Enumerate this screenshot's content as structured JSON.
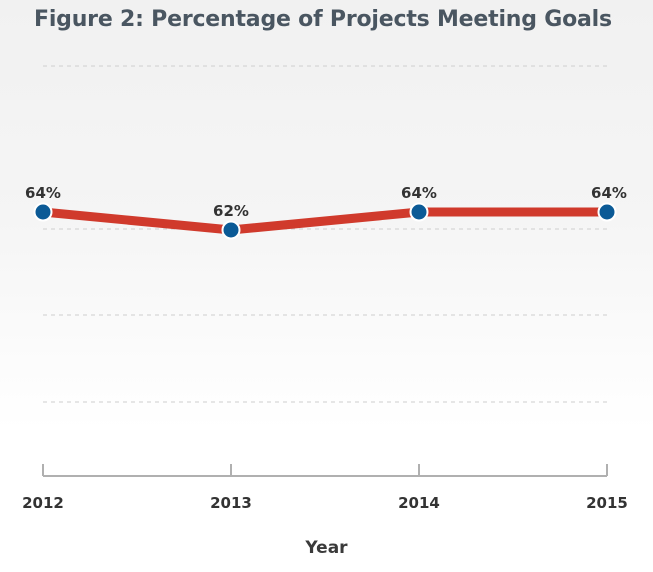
{
  "chart_data": {
    "type": "line",
    "title": "Figure 2: Percentage of Projects Meeting Goals",
    "xlabel": "Year",
    "ylabel": "",
    "categories": [
      "2012",
      "2013",
      "2014",
      "2015"
    ],
    "series": [
      {
        "values": [
          64,
          62,
          64,
          64
        ],
        "labels": [
          "64%",
          "62%",
          "64%",
          "64%"
        ]
      }
    ],
    "grid": true,
    "colors": {
      "line": "#d03a2c",
      "marker": "#0b5a96",
      "marker_stroke": "#ffffff",
      "grid": "#cfcfcf",
      "axis": "#b0b0b0",
      "title": "#4a5661"
    }
  }
}
